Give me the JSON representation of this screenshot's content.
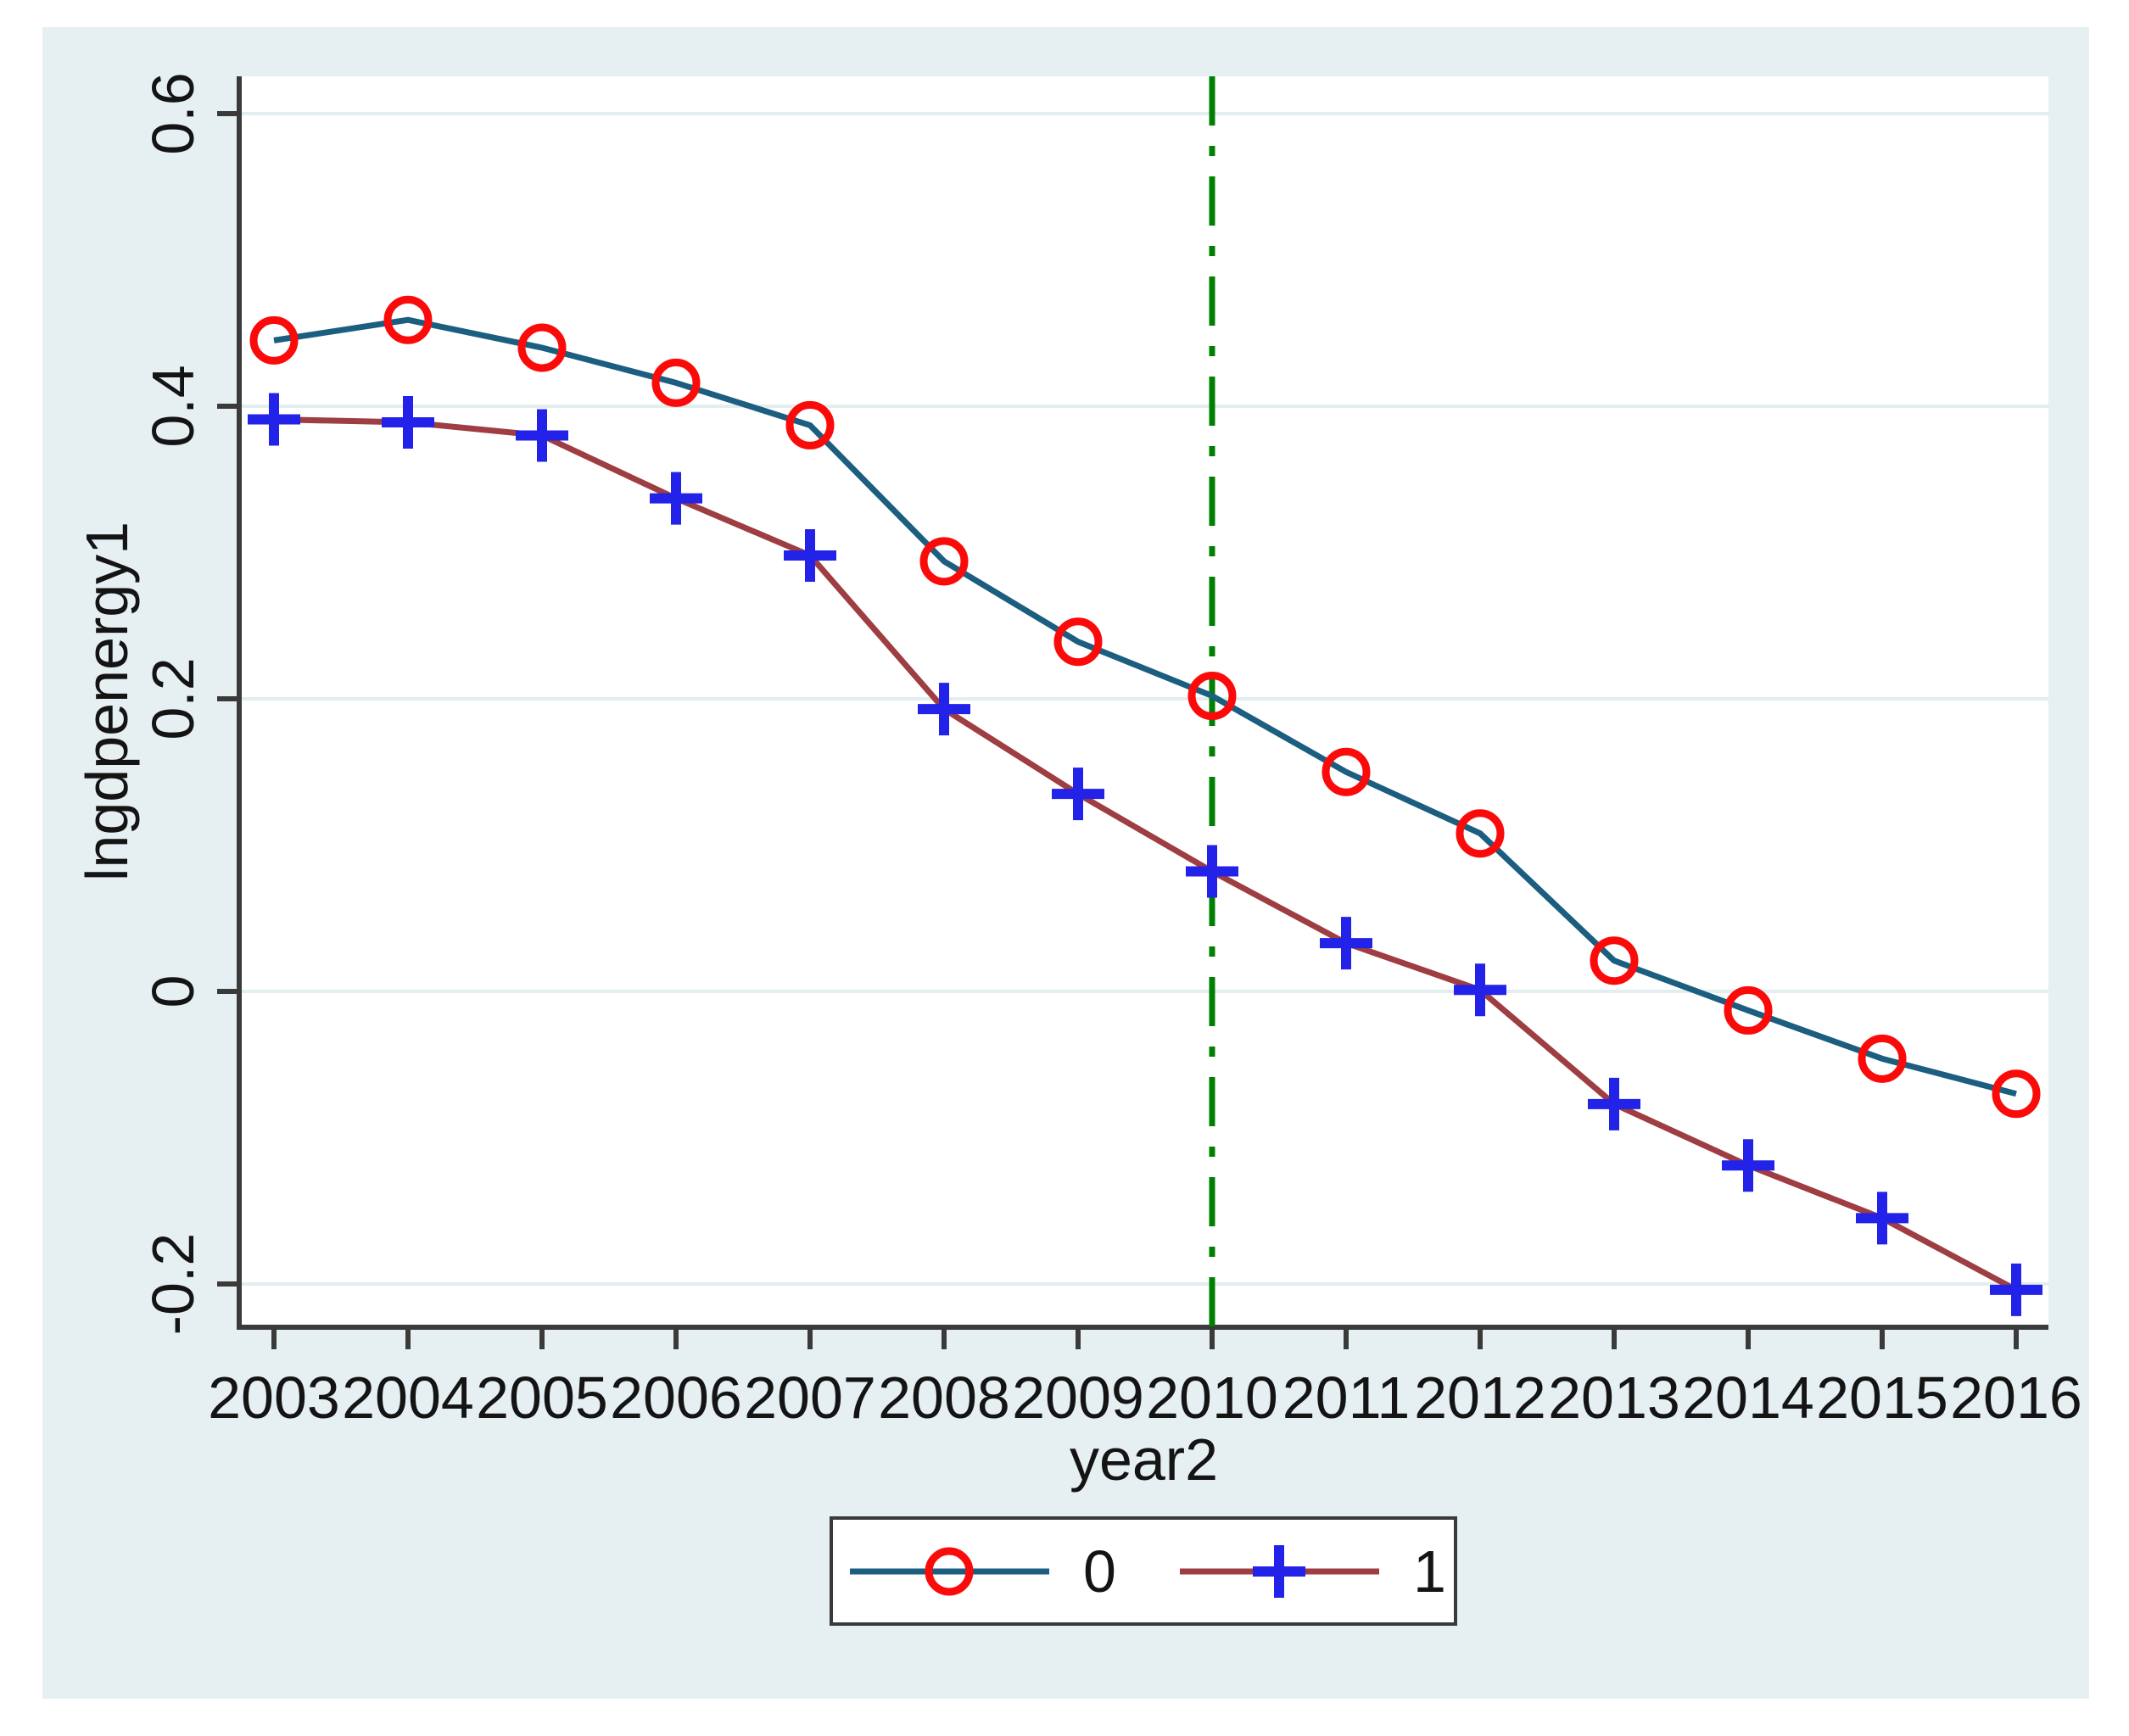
{
  "figure": {
    "background": "#e6eff1",
    "plot_background": "#ffffff",
    "axis_color": "#3a3a3a",
    "grid_color": "#e2eef0",
    "text_color": "#141414"
  },
  "chart_data": {
    "type": "line",
    "title": "",
    "xlabel": "year2",
    "ylabel": "lngdpenergy1",
    "x": [
      2003,
      2004,
      2005,
      2006,
      2007,
      2008,
      2009,
      2010,
      2011,
      2012,
      2013,
      2014,
      2015,
      2016
    ],
    "series": [
      {
        "name": "0",
        "line_color": "#1b5e80",
        "marker": "circle",
        "marker_color": "#fb0a0a",
        "values": [
          0.445,
          0.459,
          0.44,
          0.416,
          0.387,
          0.294,
          0.239,
          0.202,
          0.15,
          0.108,
          0.021,
          -0.013,
          -0.046,
          -0.07
        ]
      },
      {
        "name": "1",
        "line_color": "#9e3d42",
        "marker": "plus",
        "marker_color": "#2222e8",
        "values": [
          0.391,
          0.389,
          0.38,
          0.337,
          0.298,
          0.193,
          0.135,
          0.082,
          0.033,
          0.001,
          -0.077,
          -0.119,
          -0.155,
          -0.204
        ]
      }
    ],
    "yticks": [
      0.6,
      0.4,
      0.2,
      0,
      -0.2
    ],
    "ytick_labels": [
      "0.6",
      "0.4",
      "0.2",
      "0",
      "-0.2"
    ],
    "ylim": [
      -0.23,
      0.63
    ],
    "grid": "horizontal-only",
    "legend_position": "bottom",
    "refline": {
      "x": 2010,
      "color": "#008000",
      "style": "dash-dot"
    }
  }
}
